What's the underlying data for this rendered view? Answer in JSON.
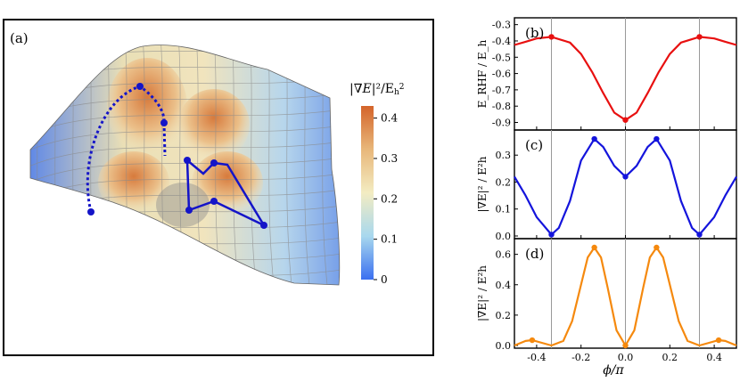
{
  "panel_a": {
    "label": "(a)",
    "colorbar": {
      "title": "|∇E|²/E²h",
      "ticks": [
        "0.4",
        "0.3",
        "0.2",
        "0.1",
        "0"
      ],
      "tick_values": [
        0.4,
        0.3,
        0.2,
        0.1,
        0
      ],
      "range": [
        0,
        0.43
      ],
      "colors": [
        "#3a6ff0",
        "#a8d8ee",
        "#f3ecc2",
        "#e8b77a",
        "#d4642a"
      ]
    }
  },
  "x_axis": {
    "label": "ϕ/π",
    "ticks": [
      "-0.4",
      "-0.2",
      "0.0",
      "0.2",
      "0.4"
    ],
    "tick_values": [
      -0.4,
      -0.2,
      0.0,
      0.2,
      0.4
    ],
    "range": [
      -0.5,
      0.5
    ]
  },
  "vertical_lines": [
    -0.3333,
    0.0,
    0.3333
  ],
  "chart_data": [
    {
      "type": "line",
      "panel_label": "(b)",
      "ylabel": "E_RHF / E_h",
      "ylim": [
        -0.93,
        -0.28
      ],
      "yticks": [
        "-0.3",
        "-0.4",
        "-0.5",
        "-0.6",
        "-0.7",
        "-0.8",
        "-0.9"
      ],
      "ytick_values": [
        -0.3,
        -0.4,
        -0.5,
        -0.6,
        -0.7,
        -0.8,
        -0.9
      ],
      "color": "#e81010",
      "x": [
        -0.5,
        -0.45,
        -0.4,
        -0.3333,
        -0.25,
        -0.2,
        -0.15,
        -0.1,
        -0.05,
        0.0,
        0.05,
        0.1,
        0.15,
        0.2,
        0.25,
        0.3333,
        0.4,
        0.45,
        0.5
      ],
      "y": [
        -0.425,
        -0.405,
        -0.385,
        -0.375,
        -0.41,
        -0.48,
        -0.59,
        -0.72,
        -0.84,
        -0.885,
        -0.84,
        -0.72,
        -0.59,
        -0.48,
        -0.41,
        -0.375,
        -0.385,
        -0.405,
        -0.425
      ],
      "points": [
        {
          "x": -0.3333,
          "y": -0.375
        },
        {
          "x": 0.0,
          "y": -0.885
        },
        {
          "x": 0.3333,
          "y": -0.375
        }
      ]
    },
    {
      "type": "line",
      "panel_label": "(c)",
      "ylabel": "|∇E|² / E²h",
      "ylim": [
        0,
        0.38
      ],
      "yticks": [
        "0.3",
        "0.2",
        "0.1",
        "0.0"
      ],
      "ytick_values": [
        0.3,
        0.2,
        0.1,
        0.0
      ],
      "color": "#1414dc",
      "x": [
        -0.5,
        -0.45,
        -0.4,
        -0.3333,
        -0.3,
        -0.25,
        -0.2,
        -0.14,
        -0.1,
        -0.05,
        0.0,
        0.05,
        0.1,
        0.14,
        0.2,
        0.25,
        0.3,
        0.3333,
        0.4,
        0.45,
        0.5
      ],
      "y": [
        0.22,
        0.15,
        0.07,
        0.005,
        0.03,
        0.13,
        0.28,
        0.36,
        0.33,
        0.26,
        0.22,
        0.26,
        0.33,
        0.36,
        0.28,
        0.13,
        0.03,
        0.005,
        0.07,
        0.15,
        0.22
      ],
      "points": [
        {
          "x": -0.3333,
          "y": 0.005
        },
        {
          "x": -0.14,
          "y": 0.36
        },
        {
          "x": 0.0,
          "y": 0.22
        },
        {
          "x": 0.14,
          "y": 0.36
        },
        {
          "x": 0.3333,
          "y": 0.005
        }
      ]
    },
    {
      "type": "line",
      "panel_label": "(d)",
      "ylabel": "|∇̄E|² / E²h",
      "ylim": [
        0,
        0.68
      ],
      "yticks": [
        "0.6",
        "0.4",
        "0.2",
        "0.0"
      ],
      "ytick_values": [
        0.6,
        0.4,
        0.2,
        0.0
      ],
      "color": "#f5890e",
      "x": [
        -0.5,
        -0.45,
        -0.42,
        -0.3333,
        -0.28,
        -0.24,
        -0.2,
        -0.17,
        -0.14,
        -0.11,
        -0.08,
        -0.04,
        0.0,
        0.04,
        0.08,
        0.11,
        0.14,
        0.17,
        0.2,
        0.24,
        0.28,
        0.3333,
        0.42,
        0.45,
        0.5
      ],
      "y": [
        0.0,
        0.03,
        0.035,
        0.0,
        0.03,
        0.16,
        0.4,
        0.58,
        0.645,
        0.58,
        0.38,
        0.1,
        0.0,
        0.1,
        0.38,
        0.58,
        0.645,
        0.58,
        0.4,
        0.16,
        0.03,
        0.0,
        0.035,
        0.03,
        0.0
      ],
      "points": [
        {
          "x": -0.42,
          "y": 0.035
        },
        {
          "x": -0.14,
          "y": 0.645
        },
        {
          "x": 0.0,
          "y": 0.0
        },
        {
          "x": 0.14,
          "y": 0.645
        },
        {
          "x": 0.42,
          "y": 0.035
        }
      ]
    }
  ]
}
